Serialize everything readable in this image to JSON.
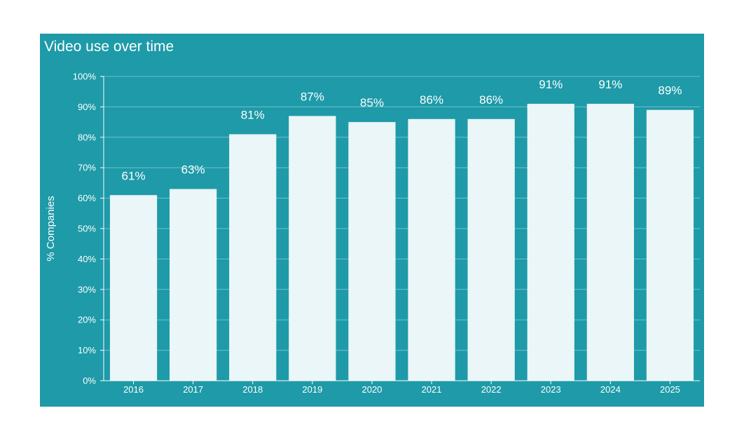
{
  "chart_data": {
    "type": "bar",
    "title": "Video use over time",
    "xlabel": "",
    "ylabel": "% Companies",
    "categories": [
      "2016",
      "2017",
      "2018",
      "2019",
      "2020",
      "2021",
      "2022",
      "2023",
      "2024",
      "2025"
    ],
    "values": [
      61,
      63,
      81,
      87,
      85,
      86,
      86,
      91,
      91,
      89
    ],
    "data_labels": [
      "61%",
      "63%",
      "81%",
      "87%",
      "85%",
      "86%",
      "86%",
      "91%",
      "91%",
      "89%"
    ],
    "ylim": [
      0,
      100
    ],
    "yticks": [
      0,
      10,
      20,
      30,
      40,
      50,
      60,
      70,
      80,
      90,
      100
    ],
    "ytick_labels": [
      "0%",
      "10%",
      "20%",
      "30%",
      "40%",
      "50%",
      "60%",
      "70%",
      "80%",
      "90%",
      "100%"
    ],
    "grid": true,
    "legend": "none",
    "colors": {
      "background": "#1e9aa8",
      "bar": "#eaf6f7",
      "text": "#ffffff",
      "grid": "#6cc3cc"
    }
  }
}
